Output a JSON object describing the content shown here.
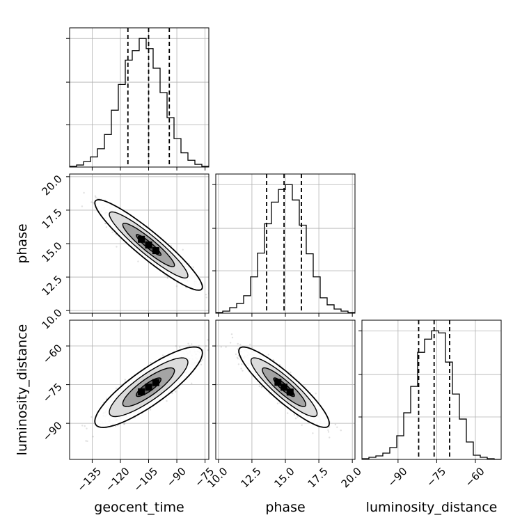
{
  "chart_data": {
    "type": "corner",
    "parameters": [
      "geocent_time",
      "phase",
      "luminosity_distance"
    ],
    "axis_labels": {
      "x": [
        "geocent_time",
        "phase",
        "luminosity_distance"
      ],
      "y": [
        "",
        "phase",
        "luminosity_distance"
      ]
    },
    "ranges": {
      "geocent_time": [
        -147,
        -73
      ],
      "phase": [
        9.8,
        20.2
      ],
      "luminosity_distance": [
        -104,
        -50
      ]
    },
    "ticks": {
      "geocent_time": [
        -135,
        -120,
        -105,
        -90,
        -75
      ],
      "phase": [
        10.0,
        12.5,
        15.0,
        17.5,
        20.0
      ],
      "luminosity_distance": [
        -90,
        -75,
        -60
      ]
    },
    "tick_labels": {
      "geocent_time": [
        "−135",
        "−120",
        "−105",
        "−90",
        "−75"
      ],
      "phase": [
        "10.0",
        "12.5",
        "15.0",
        "17.5",
        "20.0"
      ],
      "luminosity_distance": [
        "−90",
        "−75",
        "−60"
      ]
    },
    "quantiles": {
      "geocent_time": [
        -116,
        -105,
        -94
      ],
      "phase": [
        13.6,
        14.9,
        16.2
      ],
      "luminosity_distance": [
        -82,
        -76,
        -70
      ]
    },
    "histograms": {
      "geocent_time": {
        "edges": [
          -147,
          -143.3,
          -139.6,
          -135.9,
          -132.2,
          -128.5,
          -124.8,
          -121.1,
          -117.4,
          -113.7,
          -110,
          -106.3,
          -102.6,
          -98.9,
          -95.2,
          -91.5,
          -87.8,
          -84.1,
          -80.4,
          -76.7,
          -73
        ],
        "counts": [
          1,
          3,
          8,
          15,
          27,
          48,
          84,
          122,
          158,
          172,
          190,
          175,
          146,
          110,
          73,
          42,
          21,
          10,
          4,
          1
        ]
      },
      "phase": {
        "edges": [
          9.8,
          10.32,
          10.84,
          11.36,
          11.88,
          12.4,
          12.92,
          13.44,
          13.96,
          14.48,
          15.0,
          15.52,
          16.04,
          16.56,
          17.08,
          17.6,
          18.12,
          18.64,
          19.16,
          19.68,
          20.2
        ],
        "counts": [
          1,
          3,
          8,
          14,
          25,
          52,
          86,
          128,
          159,
          177,
          184,
          162,
          126,
          85,
          52,
          22,
          12,
          6,
          3,
          1
        ]
      },
      "luminosity_distance": {
        "edges": [
          -104,
          -101.3,
          -98.6,
          -95.9,
          -93.2,
          -90.5,
          -87.8,
          -85.1,
          -82.4,
          -79.7,
          -77,
          -74.3,
          -71.6,
          -68.9,
          -66.2,
          -63.5,
          -60.8,
          -58.1,
          -55.4,
          -52.7,
          -50
        ],
        "counts": [
          1,
          3,
          5,
          9,
          17,
          34,
          67,
          105,
          154,
          173,
          185,
          182,
          140,
          94,
          58,
          25,
          6,
          3,
          1,
          0
        ]
      }
    },
    "pairs": [
      {
        "x": "geocent_time",
        "y": "phase",
        "mean": [
          -105,
          14.9
        ],
        "std": [
          11,
          1.3
        ],
        "corr": -0.93
      },
      {
        "x": "geocent_time",
        "y": "luminosity_distance",
        "mean": [
          -105,
          -76
        ],
        "std": [
          11,
          6
        ],
        "corr": 0.85
      },
      {
        "x": "phase",
        "y": "luminosity_distance",
        "mean": [
          14.9,
          -76
        ],
        "std": [
          1.3,
          6
        ],
        "corr": -0.9
      }
    ],
    "grid": true,
    "colors": {
      "scatter": "#888888",
      "line": "#000000",
      "grid": "#b0b0b0"
    }
  }
}
